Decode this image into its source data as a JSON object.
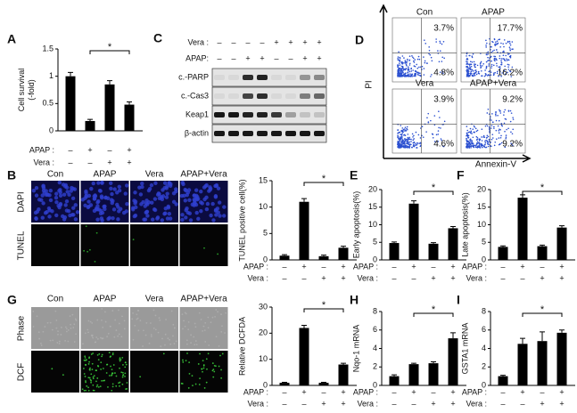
{
  "chart_data": [
    {
      "type": "bar",
      "label": "A",
      "y_label": [
        "Cell survival",
        "(-fold)"
      ],
      "color": "#000000",
      "values": [
        1.0,
        0.18,
        0.85,
        0.48
      ],
      "errors": [
        0.07,
        0.03,
        0.07,
        0.05
      ],
      "ylim": [
        0,
        1.5
      ],
      "yticks": [
        0,
        0.5,
        1,
        1.5
      ],
      "significance": "*",
      "conditions": [
        {
          "name": "APAP :",
          "signs": [
            "–",
            "+",
            "–",
            "+"
          ]
        },
        {
          "name": "Vera :",
          "signs": [
            "–",
            "–",
            "+",
            "+"
          ]
        }
      ]
    },
    {
      "type": "bar",
      "y_label": [
        "TUNEL positive cell(%)"
      ],
      "color": "#000000",
      "values": [
        0.8,
        11,
        0.7,
        2.3
      ],
      "errors": [
        0.2,
        0.6,
        0.2,
        0.3
      ],
      "ylim": [
        0,
        15
      ],
      "yticks": [
        0,
        5,
        10,
        15
      ],
      "significance": "*",
      "conditions": [
        {
          "name": "APAP :",
          "signs": [
            "–",
            "+",
            "–",
            "+"
          ]
        },
        {
          "name": "Vera :",
          "signs": [
            "–",
            "–",
            "+",
            "+"
          ]
        }
      ]
    },
    {
      "type": "bar",
      "label": "E",
      "y_label": [
        "Early apoptosis(%)"
      ],
      "color": "#000000",
      "values": [
        4.8,
        16,
        4.6,
        9
      ],
      "errors": [
        0.3,
        0.8,
        0.3,
        0.5
      ],
      "ylim": [
        0,
        20
      ],
      "yticks": [
        0,
        5,
        10,
        15,
        20
      ],
      "significance": "*",
      "conditions": [
        {
          "name": "APAP :",
          "signs": [
            "–",
            "+",
            "–",
            "+"
          ]
        },
        {
          "name": "Vera :",
          "signs": [
            "–",
            "–",
            "+",
            "+"
          ]
        }
      ]
    },
    {
      "type": "bar",
      "label": "F",
      "y_label": [
        "Late apoptosis(%)"
      ],
      "color": "#000000",
      "values": [
        3.7,
        17.7,
        3.9,
        9.2
      ],
      "errors": [
        0.3,
        0.8,
        0.3,
        0.5
      ],
      "ylim": [
        0,
        20
      ],
      "yticks": [
        0,
        5,
        10,
        15,
        20
      ],
      "significance": "*",
      "conditions": [
        {
          "name": "APAP :",
          "signs": [
            "–",
            "+",
            "–",
            "+"
          ]
        },
        {
          "name": "Vera :",
          "signs": [
            "–",
            "–",
            "+",
            "+"
          ]
        }
      ]
    },
    {
      "type": "bar",
      "y_label": [
        "Relative DCFDA"
      ],
      "color": "#000000",
      "values": [
        1,
        22,
        1,
        8
      ],
      "errors": [
        0.2,
        1,
        0.2,
        0.5
      ],
      "ylim": [
        0,
        30
      ],
      "yticks": [
        0,
        10,
        20,
        30
      ],
      "significance": "*",
      "conditions": [
        {
          "name": "APAP :",
          "signs": [
            "–",
            "+",
            "–",
            "+"
          ]
        },
        {
          "name": "Vera :",
          "signs": [
            "–",
            "–",
            "+",
            "+"
          ]
        }
      ]
    },
    {
      "type": "bar",
      "label": "H",
      "y_label": [
        "Nqo-1 mRNA"
      ],
      "color": "#000000",
      "values": [
        1,
        2.3,
        2.4,
        5.1
      ],
      "errors": [
        0.15,
        0.1,
        0.15,
        0.6
      ],
      "ylim": [
        0,
        8
      ],
      "yticks": [
        0,
        2,
        4,
        6,
        8
      ],
      "significance": "*",
      "conditions": [
        {
          "name": "APAP :",
          "signs": [
            "–",
            "+",
            "–",
            "+"
          ]
        },
        {
          "name": "Vera :",
          "signs": [
            "–",
            "–",
            "+",
            "+"
          ]
        }
      ]
    },
    {
      "type": "bar",
      "label": "I",
      "y_label": [
        "GSTA1 mRNA"
      ],
      "color": "#000000",
      "values": [
        1,
        4.5,
        4.8,
        5.7
      ],
      "errors": [
        0.1,
        0.6,
        1,
        0.3
      ],
      "ylim": [
        0,
        8
      ],
      "yticks": [
        0,
        2,
        4,
        6,
        8
      ],
      "significance": "*",
      "conditions": [
        {
          "name": "APAP :",
          "signs": [
            "–",
            "+",
            "–",
            "+"
          ]
        },
        {
          "name": "Vera :",
          "signs": [
            "–",
            "–",
            "+",
            "+"
          ]
        }
      ]
    }
  ],
  "blot": {
    "label": "C",
    "conditions": [
      {
        "name": "Vera :",
        "signs": [
          "–",
          "–",
          "–",
          "–",
          "+",
          "+",
          "+",
          "+"
        ]
      },
      {
        "name": "APAP:",
        "signs": [
          "–",
          "–",
          "+",
          "+",
          "–",
          "–",
          "+",
          "+"
        ]
      }
    ],
    "rows": [
      "c.-PARP",
      "c.-Cas3",
      "Keap1",
      "β-actin"
    ]
  },
  "flow": {
    "label": "D",
    "y_label": "PI",
    "x_label": "Annexin-V",
    "plots": [
      {
        "name": "Con",
        "upper": "3.7%",
        "lower": "4.8%"
      },
      {
        "name": "APAP",
        "upper": "17.7%",
        "lower": "16.2%"
      },
      {
        "name": "Vera",
        "upper": "3.9%",
        "lower": "4.6%"
      },
      {
        "name": "APAP+Vera",
        "upper": "9.2%",
        "lower": "9.2%"
      }
    ]
  },
  "microscopy": [
    {
      "label": "B",
      "columns": [
        "Con",
        "APAP",
        "Vera",
        "APAP+Vera"
      ],
      "rows": [
        "DAPI",
        "TUNEL"
      ]
    },
    {
      "label": "G",
      "columns": [
        "Con",
        "APAP",
        "Vera",
        "APAP+Vera"
      ],
      "rows": [
        "Phase",
        "DCF"
      ]
    }
  ]
}
